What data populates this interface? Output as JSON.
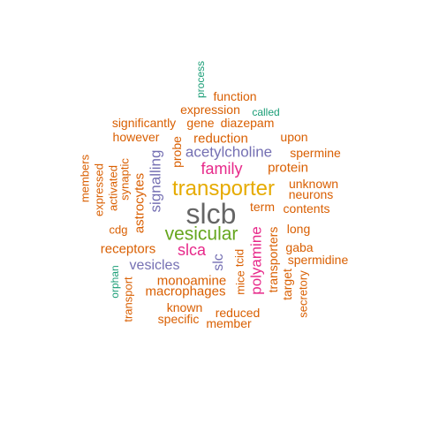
{
  "colors": {
    "orange": "#d95f02",
    "green": "#1b9e77",
    "purple": "#7570b3",
    "magenta": "#e7298a",
    "lime": "#66a61e",
    "gold": "#e6ab02",
    "gray": "#666666"
  },
  "words": [
    {
      "text": "slcb",
      "color": "gray",
      "weight": 100
    },
    {
      "text": "transporter",
      "color": "gold",
      "weight": 80
    },
    {
      "text": "vesicular",
      "color": "lime",
      "weight": 60
    },
    {
      "text": "family",
      "color": "magenta",
      "weight": 45
    },
    {
      "text": "slca",
      "color": "magenta",
      "weight": 45
    },
    {
      "text": "polyamine",
      "color": "magenta",
      "weight": 40
    },
    {
      "text": "acetylcholine",
      "color": "purple",
      "weight": 38
    },
    {
      "text": "signalling",
      "color": "purple",
      "weight": 36
    },
    {
      "text": "vesicles",
      "color": "purple",
      "weight": 34
    },
    {
      "text": "slc",
      "color": "purple",
      "weight": 34
    },
    {
      "text": "protein",
      "color": "orange",
      "weight": 30
    },
    {
      "text": "reduction",
      "color": "orange",
      "weight": 30
    },
    {
      "text": "monoamine",
      "color": "orange",
      "weight": 30
    },
    {
      "text": "macrophages",
      "color": "orange",
      "weight": 30
    },
    {
      "text": "receptors",
      "color": "orange",
      "weight": 30
    },
    {
      "text": "astrocytes",
      "color": "orange",
      "weight": 28
    },
    {
      "text": "probe",
      "color": "orange",
      "weight": 28
    },
    {
      "text": "transporters",
      "color": "orange",
      "weight": 28
    },
    {
      "text": "function",
      "color": "orange",
      "weight": 26
    },
    {
      "text": "expression",
      "color": "orange",
      "weight": 26
    },
    {
      "text": "significantly",
      "color": "orange",
      "weight": 26
    },
    {
      "text": "gene",
      "color": "orange",
      "weight": 26
    },
    {
      "text": "diazepam",
      "color": "orange",
      "weight": 26
    },
    {
      "text": "however",
      "color": "orange",
      "weight": 26
    },
    {
      "text": "upon",
      "color": "orange",
      "weight": 26
    },
    {
      "text": "spermine",
      "color": "orange",
      "weight": 26
    },
    {
      "text": "unknown",
      "color": "orange",
      "weight": 26
    },
    {
      "text": "neurons",
      "color": "orange",
      "weight": 26
    },
    {
      "text": "term",
      "color": "orange",
      "weight": 26
    },
    {
      "text": "contents",
      "color": "orange",
      "weight": 26
    },
    {
      "text": "long",
      "color": "orange",
      "weight": 26
    },
    {
      "text": "gaba",
      "color": "orange",
      "weight": 26
    },
    {
      "text": "spermidine",
      "color": "orange",
      "weight": 26
    },
    {
      "text": "target",
      "color": "orange",
      "weight": 26
    },
    {
      "text": "secretory",
      "color": "orange",
      "weight": 24
    },
    {
      "text": "tcid",
      "color": "orange",
      "weight": 26
    },
    {
      "text": "mice",
      "color": "orange",
      "weight": 26
    },
    {
      "text": "known",
      "color": "orange",
      "weight": 26
    },
    {
      "text": "specific",
      "color": "orange",
      "weight": 26
    },
    {
      "text": "reduced",
      "color": "orange",
      "weight": 26
    },
    {
      "text": "member",
      "color": "orange",
      "weight": 26
    },
    {
      "text": "transport",
      "color": "orange",
      "weight": 24
    },
    {
      "text": "cdg",
      "color": "orange",
      "weight": 26
    },
    {
      "text": "members",
      "color": "orange",
      "weight": 24
    },
    {
      "text": "expressed",
      "color": "orange",
      "weight": 24
    },
    {
      "text": "activated",
      "color": "orange",
      "weight": 24
    },
    {
      "text": "synaptic",
      "color": "orange",
      "weight": 24
    },
    {
      "text": "process",
      "color": "green",
      "weight": 20
    },
    {
      "text": "called",
      "color": "green",
      "weight": 20
    },
    {
      "text": "orphan",
      "color": "green",
      "weight": 20
    }
  ]
}
